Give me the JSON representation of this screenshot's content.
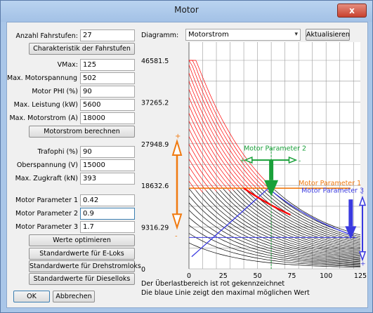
{
  "window": {
    "title": "Motor",
    "close_glyph": "x"
  },
  "left": {
    "stufen_label": "Anzahl Fahrstufen:",
    "stufen_value": "27",
    "char_button": "Charakteristik der Fahrstufen",
    "fields1": [
      {
        "label": "VMax:",
        "value": "125"
      },
      {
        "label": "Max. Motorspannung (V)",
        "value": "502"
      },
      {
        "label": "Motor PHI (%)",
        "value": "90"
      },
      {
        "label": "Max. Leistung (kW)",
        "value": "5600"
      },
      {
        "label": "Max. Motorstrom (A)",
        "value": "18000"
      }
    ],
    "motorstrom_button": "Motorstrom berechnen",
    "fields2": [
      {
        "label": "Trafophi (%)",
        "value": "90"
      },
      {
        "label": "Oberspannung (V)",
        "value": "15000"
      },
      {
        "label": "Max. Zugkraft (kN)",
        "value": "393"
      }
    ],
    "fields3": [
      {
        "label": "Motor Parameter 1",
        "value": "0.42"
      },
      {
        "label": "Motor Parameter 2",
        "value": "0.9"
      },
      {
        "label": "Motor Parameter 3",
        "value": "1.7"
      }
    ],
    "werte_button": "Werte optimieren",
    "eloks_button": "Standardwerte für E-Loks",
    "dreh_button": "Standardwerte für Drehstromloks",
    "diesel_button": "Standardwerte für Dieselloks",
    "ok_button": "OK",
    "cancel_button": "Abbrechen"
  },
  "right": {
    "diagramm_label": "Diagramm:",
    "diagramm_value": "Motorstrom",
    "aktualisieren_button": "Aktualisieren",
    "note1": "Der Überlastbereich ist rot gekennzeichnet",
    "note2": "Die blaue Linie zeigt den maximal möglichen Wert"
  },
  "chart_data": {
    "type": "line",
    "x_ticks": [
      "0",
      "25",
      "50",
      "75",
      "100",
      "125"
    ],
    "y_ticks": [
      "0",
      "9316.29",
      "18632.6",
      "27948.9",
      "37265.2",
      "46581.5"
    ],
    "xlim": [
      0,
      125
    ],
    "ylim": [
      0,
      46581.5
    ],
    "fahrstufen": 27,
    "limit_line_y": 18000,
    "annotations": [
      "Motor Parameter 1",
      "Motor Parameter 2",
      "Motor Parameter 3"
    ],
    "colors": {
      "overload": "#ff0000",
      "normal": "#000000",
      "max_line": "#3a3ae0",
      "param1": "#f07a10",
      "param2": "#1aa03a",
      "param3": "#3a3ae0"
    }
  }
}
